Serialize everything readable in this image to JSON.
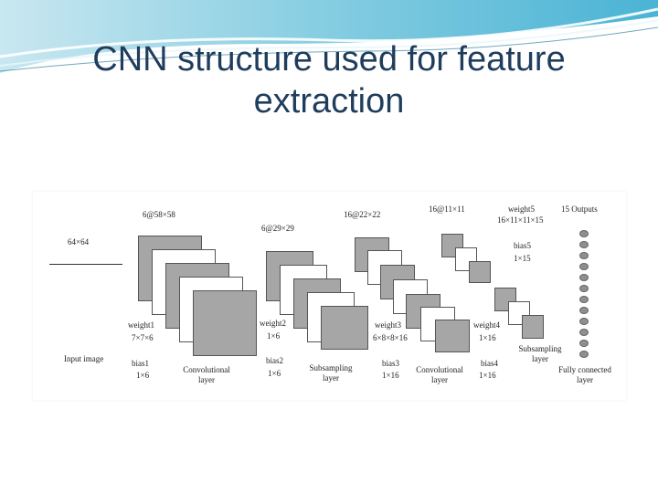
{
  "slide": {
    "title": "CNN structure used for feature extraction"
  },
  "diagram": {
    "input_size": "64×64",
    "input_caption": "Input image",
    "stage1": {
      "maps": "6@58×58",
      "weight": "weight1",
      "weight_dim": "7×7×6",
      "bias": "bias1",
      "bias_dim": "1×6",
      "caption": "Convolutional\nlayer"
    },
    "stage2": {
      "maps": "6@29×29",
      "weight": "weight2",
      "weight_dim": "1×6",
      "bias": "bias2",
      "bias_dim": "1×6",
      "caption": "Subsampling\nlayer"
    },
    "stage3": {
      "maps": "16@22×22",
      "weight": "weight3",
      "weight_dim": "6×8×8×16",
      "bias": "bias3",
      "bias_dim": "1×16",
      "caption": "Convolutional\nlayer"
    },
    "stage4": {
      "maps": "16@11×11",
      "weight": "weight4",
      "weight_dim": "1×16",
      "bias": "bias4",
      "bias_dim": "1×16",
      "caption": "Subsampling\nlayer"
    },
    "stage5": {
      "weight": "weight5",
      "weight_dim": "16×11×11×15",
      "bias": "bias5",
      "bias_dim": "1×15",
      "outputs": "15 Outputs",
      "caption": "Fully connected\nlayer"
    }
  }
}
